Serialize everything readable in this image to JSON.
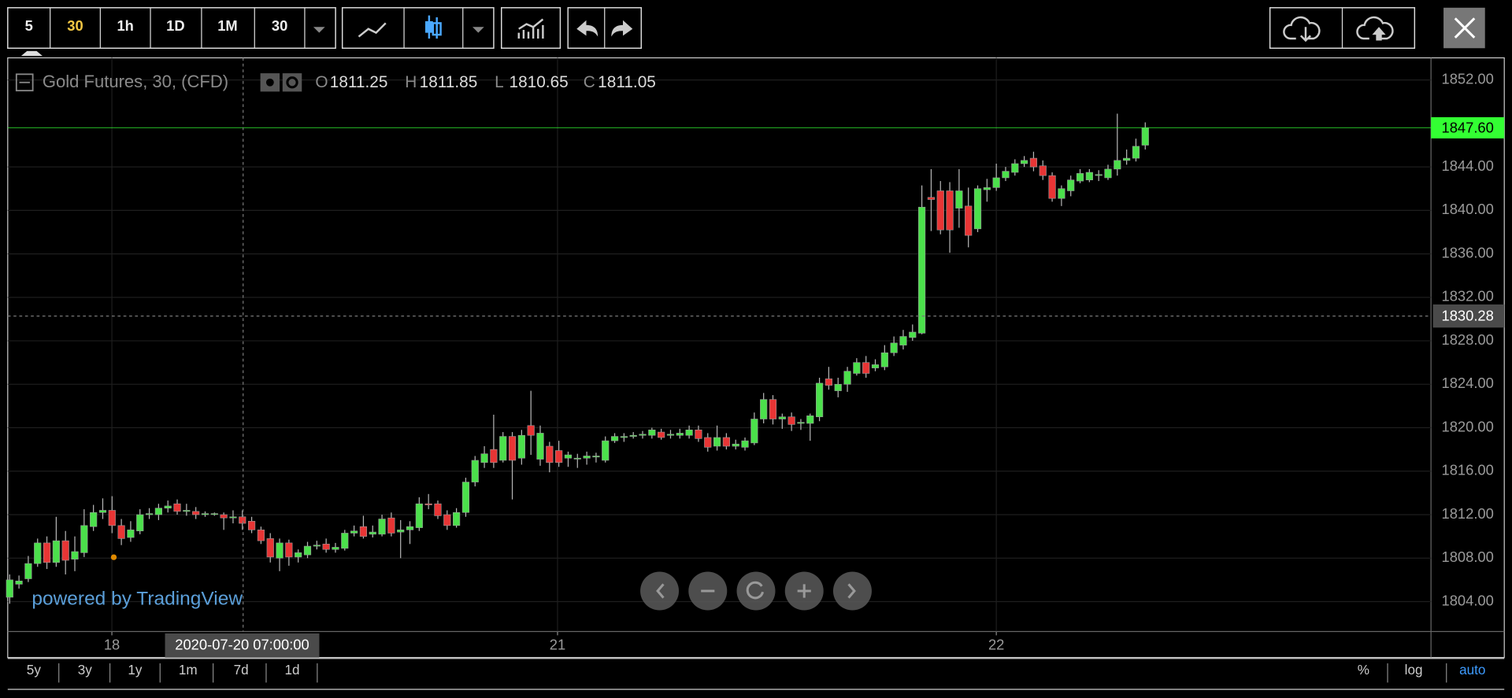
{
  "toolbar": {
    "intervals": [
      "5",
      "30",
      "1h",
      "1D",
      "1M",
      "30"
    ]
  },
  "chart_data": {
    "type": "candlestick",
    "title": "Gold Futures, 30, (CFD)",
    "legend": [
      {
        "key": "O",
        "value": 1811.25
      },
      {
        "key": "H",
        "value": 1811.85
      },
      {
        "key": "L",
        "value": 1810.65
      },
      {
        "key": "C",
        "value": 1811.05
      }
    ],
    "watermark": "powered by TradingView",
    "xlim": [
      -0.21,
      152.7
    ],
    "ylim": [
      1801.25,
      1853.86
    ],
    "yticks": [
      {
        "value": 1852,
        "label": "1852.00"
      },
      {
        "value": 1844,
        "label": "1844.00"
      },
      {
        "value": 1840,
        "label": "1840.00"
      },
      {
        "value": 1836,
        "label": "1836.00"
      },
      {
        "value": 1832,
        "label": "1832.00"
      },
      {
        "value": 1828,
        "label": "1828.00"
      },
      {
        "value": 1824,
        "label": "1824.00"
      },
      {
        "value": 1820,
        "label": "1820.00"
      },
      {
        "value": 1816,
        "label": "1816.00"
      },
      {
        "value": 1812,
        "label": "1812.00"
      },
      {
        "value": 1808,
        "label": "1808.00"
      },
      {
        "value": 1804,
        "label": "1804.00"
      }
    ],
    "xticks": [
      {
        "value": 10.98,
        "label": "18"
      },
      {
        "value": 58.86,
        "label": "21"
      },
      {
        "value": 106,
        "label": "22"
      }
    ],
    "grid": true,
    "last_price": {
      "value": 1847.6,
      "label": "1847.60",
      "color": "#33ff33"
    },
    "crosshair": {
      "price": 1830.28,
      "time": {
        "value": 25.08,
        "label": "2020-07-20 07:00:00"
      }
    },
    "up_color": "#4be04b",
    "down_color": "#e83535",
    "candles": [
      [
        1804.4,
        1806.5,
        1803.8,
        1806
      ],
      [
        1805.6,
        1806.4,
        1805.2,
        1805.9
      ],
      [
        1806.1,
        1808.2,
        1805.8,
        1807.5
      ],
      [
        1807.5,
        1809.8,
        1807.2,
        1809.4
      ],
      [
        1809.4,
        1810,
        1807,
        1807.6
      ],
      [
        1807.6,
        1811.8,
        1807.2,
        1809.6
      ],
      [
        1809.6,
        1810.5,
        1806.5,
        1807.8
      ],
      [
        1807.9,
        1810,
        1806.8,
        1808.6
      ],
      [
        1808.5,
        1812.5,
        1808.1,
        1811
      ],
      [
        1810.9,
        1812.9,
        1810.5,
        1812.2
      ],
      [
        1812.2,
        1813.5,
        1811.6,
        1812.4
      ],
      [
        1812.4,
        1813.7,
        1810.3,
        1811
      ],
      [
        1811,
        1811.6,
        1809.2,
        1809.8
      ],
      [
        1809.9,
        1811.4,
        1809.5,
        1810.6
      ],
      [
        1810.5,
        1812.5,
        1810.2,
        1812
      ],
      [
        1812,
        1812.6,
        1811.6,
        1812.1
      ],
      [
        1812,
        1813,
        1811.5,
        1812.6
      ],
      [
        1812.6,
        1813.3,
        1812.2,
        1812.8
      ],
      [
        1813,
        1813.4,
        1812,
        1812.3
      ],
      [
        1812.3,
        1813,
        1811.9,
        1812.4
      ],
      [
        1812.3,
        1812.7,
        1811.6,
        1812
      ],
      [
        1812,
        1812.3,
        1811.8,
        1812.1
      ],
      [
        1812.1,
        1812.2,
        1811.9,
        1812.1
      ],
      [
        1812,
        1812.2,
        1810.6,
        1811.7
      ],
      [
        1811.7,
        1812.4,
        1811.2,
        1811.8
      ],
      [
        1811.8,
        1812.4,
        1810.6,
        1811.2
      ],
      [
        1811.4,
        1811.8,
        1810.3,
        1810.6
      ],
      [
        1810.6,
        1810.9,
        1809.3,
        1809.6
      ],
      [
        1809.8,
        1810.3,
        1807.6,
        1808.1
      ],
      [
        1808,
        1809.8,
        1806.8,
        1809.4
      ],
      [
        1809.4,
        1809.7,
        1807.3,
        1808.1
      ],
      [
        1808.1,
        1808.8,
        1807.6,
        1808.5
      ],
      [
        1808.3,
        1809.5,
        1808,
        1809.1
      ],
      [
        1809.1,
        1809.6,
        1808.8,
        1809.2
      ],
      [
        1809.3,
        1809.8,
        1808.5,
        1808.8
      ],
      [
        1808.8,
        1809.4,
        1808.5,
        1809
      ],
      [
        1808.9,
        1810.6,
        1808.7,
        1810.3
      ],
      [
        1810.3,
        1811,
        1810,
        1810.5
      ],
      [
        1810.9,
        1811.9,
        1809.8,
        1810
      ],
      [
        1810.2,
        1811,
        1809.9,
        1810.4
      ],
      [
        1810.2,
        1812,
        1810,
        1811.6
      ],
      [
        1811.7,
        1812.2,
        1810,
        1810.3
      ],
      [
        1810.4,
        1811.5,
        1808,
        1810.6
      ],
      [
        1810.6,
        1811.4,
        1809.3,
        1810.9
      ],
      [
        1810.8,
        1813.6,
        1810.5,
        1813
      ],
      [
        1813,
        1813.9,
        1812.5,
        1812.9
      ],
      [
        1813,
        1813.3,
        1811.6,
        1811.9
      ],
      [
        1812,
        1812.4,
        1810.6,
        1811
      ],
      [
        1811,
        1812.6,
        1810.8,
        1812.2
      ],
      [
        1812.2,
        1815.4,
        1811.8,
        1815
      ],
      [
        1815,
        1817.4,
        1814.6,
        1817
      ],
      [
        1816.8,
        1818.3,
        1816.3,
        1817.6
      ],
      [
        1818,
        1821.2,
        1816.3,
        1816.8
      ],
      [
        1817,
        1819.6,
        1816.8,
        1819.2
      ],
      [
        1819.2,
        1819.6,
        1813.4,
        1817
      ],
      [
        1817.2,
        1819.8,
        1816.6,
        1819.3
      ],
      [
        1820.2,
        1823.4,
        1817.5,
        1819.3
      ],
      [
        1817.1,
        1820.2,
        1816.5,
        1819.5
      ],
      [
        1818.3,
        1818.7,
        1815.9,
        1816.8
      ],
      [
        1817.9,
        1818.8,
        1816.4,
        1816.8
      ],
      [
        1817.2,
        1817.8,
        1816.4,
        1817.5
      ],
      [
        1817.2,
        1817.6,
        1816.3,
        1817.2
      ],
      [
        1817.2,
        1817.8,
        1816.6,
        1817.4
      ],
      [
        1817.3,
        1817.7,
        1816.8,
        1817.4
      ],
      [
        1817,
        1819.2,
        1816.8,
        1818.8
      ],
      [
        1818.8,
        1819.5,
        1818.6,
        1819.2
      ],
      [
        1819.1,
        1819.5,
        1818.7,
        1819.2
      ],
      [
        1819.2,
        1819.6,
        1819,
        1819.3
      ],
      [
        1819.3,
        1819.7,
        1819,
        1819.4
      ],
      [
        1819.3,
        1820,
        1819,
        1819.8
      ],
      [
        1819.6,
        1819.9,
        1818.9,
        1819.1
      ],
      [
        1819.3,
        1819.8,
        1819,
        1819.4
      ],
      [
        1819.3,
        1819.9,
        1819,
        1819.5
      ],
      [
        1819.3,
        1820.2,
        1819,
        1819.8
      ],
      [
        1819.8,
        1820.2,
        1818.7,
        1819
      ],
      [
        1819.1,
        1819.5,
        1817.8,
        1818.2
      ],
      [
        1818.3,
        1820.2,
        1817.9,
        1819.1
      ],
      [
        1819.1,
        1819.5,
        1818,
        1818.3
      ],
      [
        1818.3,
        1818.9,
        1818,
        1818.5
      ],
      [
        1818.2,
        1819.1,
        1817.9,
        1818.8
      ],
      [
        1818.6,
        1821.4,
        1818.4,
        1820.8
      ],
      [
        1820.8,
        1823.2,
        1820.4,
        1822.6
      ],
      [
        1822.6,
        1823,
        1820.3,
        1820.8
      ],
      [
        1820.8,
        1821.3,
        1819.9,
        1821
      ],
      [
        1821,
        1821.4,
        1819.7,
        1820.3
      ],
      [
        1820.4,
        1820.8,
        1819.8,
        1820.5
      ],
      [
        1820.4,
        1821.3,
        1818.8,
        1821.1
      ],
      [
        1821,
        1824.6,
        1820.6,
        1824.1
      ],
      [
        1824.5,
        1825.6,
        1823.5,
        1823.9
      ],
      [
        1823.4,
        1824.6,
        1822.8,
        1824
      ],
      [
        1824,
        1825.6,
        1823.3,
        1825.2
      ],
      [
        1825,
        1826.4,
        1824.8,
        1826
      ],
      [
        1826,
        1826.6,
        1824.6,
        1825
      ],
      [
        1825.5,
        1826.3,
        1825.2,
        1825.8
      ],
      [
        1825.6,
        1827.6,
        1825.3,
        1826.9
      ],
      [
        1826.9,
        1828.4,
        1826.6,
        1827.8
      ],
      [
        1827.6,
        1829,
        1827.2,
        1828.4
      ],
      [
        1828.3,
        1829.5,
        1828,
        1828.8
      ],
      [
        1828.7,
        1842.3,
        1828.6,
        1840.3
      ],
      [
        1841.2,
        1843.8,
        1838.1,
        1841
      ],
      [
        1841.8,
        1842.7,
        1837.8,
        1838.2
      ],
      [
        1841.8,
        1842.6,
        1836.1,
        1838.2
      ],
      [
        1840.2,
        1843.8,
        1838.4,
        1841.8
      ],
      [
        1840.4,
        1842.1,
        1836.6,
        1837.7
      ],
      [
        1838.3,
        1842.3,
        1838,
        1842
      ],
      [
        1841.9,
        1842.9,
        1840.8,
        1842.1
      ],
      [
        1842.1,
        1844.3,
        1841.8,
        1843
      ],
      [
        1843,
        1844,
        1842.7,
        1843.6
      ],
      [
        1843.5,
        1844.7,
        1843.2,
        1844.3
      ],
      [
        1844.3,
        1845,
        1844,
        1844.6
      ],
      [
        1844.8,
        1845.4,
        1843.6,
        1844
      ],
      [
        1844.1,
        1844.6,
        1842.8,
        1843.2
      ],
      [
        1843.2,
        1843.5,
        1840.8,
        1841.1
      ],
      [
        1841.1,
        1842.3,
        1840.4,
        1842
      ],
      [
        1841.8,
        1843.2,
        1841.3,
        1842.8
      ],
      [
        1842.7,
        1843.8,
        1842.5,
        1843.4
      ],
      [
        1842.8,
        1843.8,
        1842.6,
        1843.5
      ],
      [
        1843.3,
        1843.7,
        1842.7,
        1843.3
      ],
      [
        1843,
        1844.2,
        1842.8,
        1843.8
      ],
      [
        1843.8,
        1848.9,
        1843.2,
        1844.6
      ],
      [
        1844.6,
        1845.6,
        1844.2,
        1844.8
      ],
      [
        1844.8,
        1846.6,
        1844.5,
        1845.9
      ],
      [
        1846,
        1848.1,
        1845.6,
        1847.6
      ]
    ]
  },
  "range_bar": {
    "left": [
      "5y",
      "3y",
      "1y",
      "1m",
      "7d",
      "1d"
    ],
    "right": [
      "%",
      "log",
      "auto"
    ]
  }
}
